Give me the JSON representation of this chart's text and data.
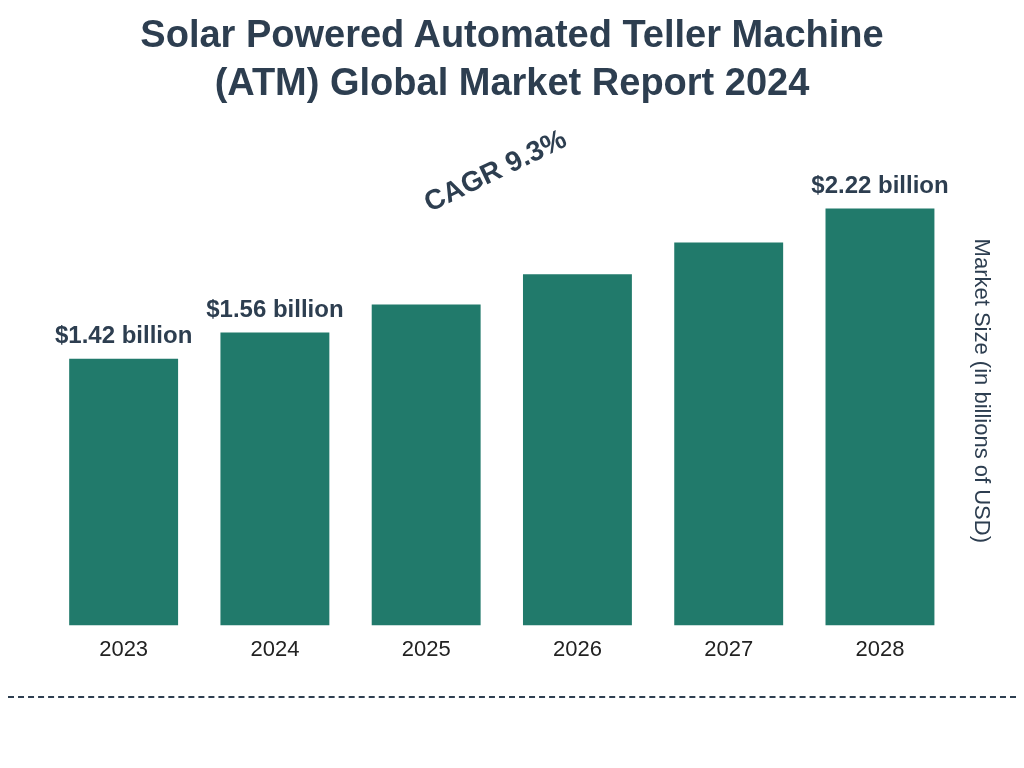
{
  "chart_data": {
    "type": "bar",
    "title": "Solar Powered Automated Teller Machine (ATM) Global Market Report 2024",
    "ylabel": "Market Size (in billions of USD)",
    "categories": [
      "2023",
      "2024",
      "2025",
      "2026",
      "2027",
      "2028"
    ],
    "values": [
      1.42,
      1.56,
      1.71,
      1.87,
      2.04,
      2.22
    ],
    "value_labels": [
      "$1.42 billion",
      "$1.56 billion",
      null,
      null,
      null,
      "$2.22 billion"
    ],
    "color": "#217a6b",
    "annotations": [
      "CAGR 9.3%"
    ],
    "grid": false,
    "legend": false
  }
}
